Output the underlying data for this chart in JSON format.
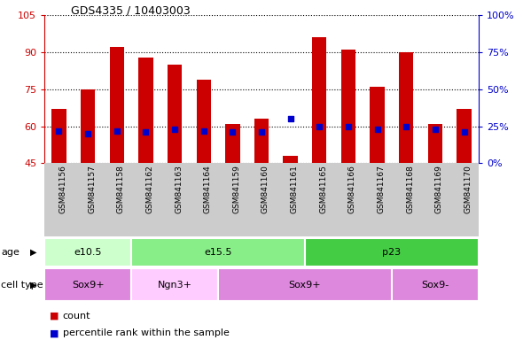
{
  "title": "GDS4335 / 10403003",
  "samples": [
    "GSM841156",
    "GSM841157",
    "GSM841158",
    "GSM841162",
    "GSM841163",
    "GSM841164",
    "GSM841159",
    "GSM841160",
    "GSM841161",
    "GSM841165",
    "GSM841166",
    "GSM841167",
    "GSM841168",
    "GSM841169",
    "GSM841170"
  ],
  "count_values": [
    67,
    75,
    92,
    88,
    85,
    79,
    61,
    63,
    48,
    96,
    91,
    76,
    90,
    61,
    67
  ],
  "percentile_values": [
    22,
    20,
    22,
    21,
    23,
    22,
    21,
    21,
    30,
    25,
    25,
    23,
    25,
    23,
    21
  ],
  "ylim_left": [
    45,
    105
  ],
  "ylim_right": [
    0,
    100
  ],
  "yticks_left": [
    45,
    60,
    75,
    90,
    105
  ],
  "yticks_right": [
    0,
    25,
    50,
    75,
    100
  ],
  "ytick_labels_right": [
    "0%",
    "25%",
    "50%",
    "75%",
    "100%"
  ],
  "bar_color": "#cc0000",
  "percentile_color": "#0000cc",
  "left_tick_color": "#cc0000",
  "right_tick_color": "#0000cc",
  "age_groups": [
    {
      "label": "e10.5",
      "start": 0,
      "end": 3,
      "color": "#ccffcc"
    },
    {
      "label": "e15.5",
      "start": 3,
      "end": 9,
      "color": "#88ee88"
    },
    {
      "label": "p23",
      "start": 9,
      "end": 15,
      "color": "#44cc44"
    }
  ],
  "cell_type_groups": [
    {
      "label": "Sox9+",
      "start": 0,
      "end": 3,
      "color": "#dd88dd"
    },
    {
      "label": "Ngn3+",
      "start": 3,
      "end": 6,
      "color": "#ffccff"
    },
    {
      "label": "Sox9+",
      "start": 6,
      "end": 12,
      "color": "#dd88dd"
    },
    {
      "label": "Sox9-",
      "start": 12,
      "end": 15,
      "color": "#dd88dd"
    }
  ],
  "legend_count_label": "count",
  "legend_pct_label": "percentile rank within the sample",
  "tick_area_bg": "#cccccc",
  "plot_bg_color": "#ffffff"
}
